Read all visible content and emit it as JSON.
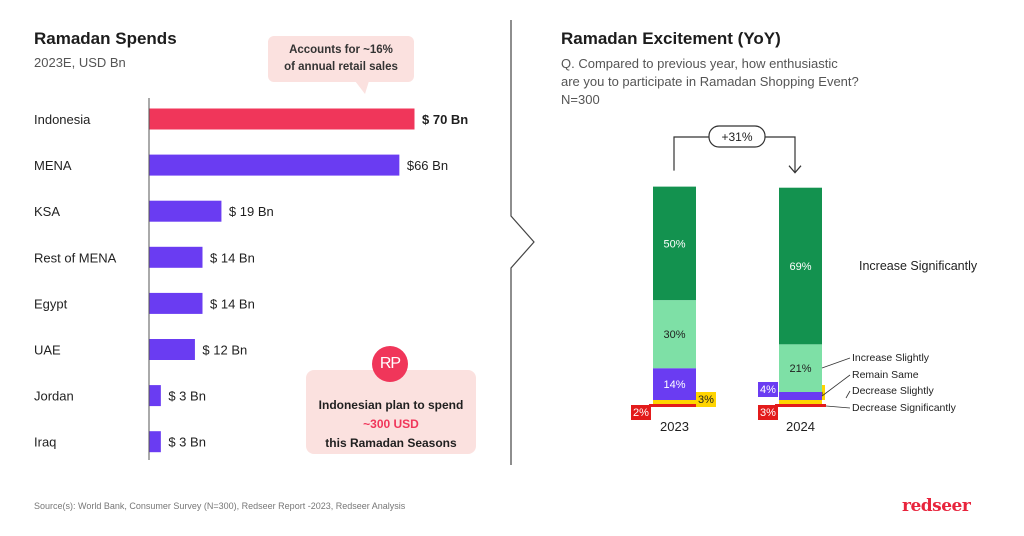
{
  "left": {
    "title": "Ramadan Spends",
    "subtitle": "2023E, USD Bn",
    "callout": {
      "line1": "Accounts for ~16%",
      "line2": "of annual retail sales"
    },
    "note": {
      "line1": "Indonesian plan to spend",
      "line2": "~300 USD",
      "line3": "this Ramadan Seasons",
      "logo": "RP"
    }
  },
  "right": {
    "title": "Ramadan Excitement (YoY)",
    "question_line1": "Q. Compared to previous year, how enthusiastic",
    "question_line2": "are you to participate in Ramadan Shopping Event?",
    "sample": "N=300",
    "growth_label": "+31%"
  },
  "source": "Source(s): World Bank, Consumer Survey (N=300), Redseer Report -2023, Redseer Analysis",
  "brand": "redseer",
  "colors": {
    "highlight": "#f0365a",
    "bar": "#6a3cf2",
    "increase_significantly": "#13924f",
    "increase_slightly": "#7ee0a6",
    "remain_same": "#6a3cf2",
    "decrease_slightly": "#ffd400",
    "decrease_significantly": "#e31b1b"
  },
  "chart_data": [
    {
      "type": "bar",
      "orientation": "horizontal",
      "title": "Ramadan Spends",
      "subtitle": "2023E, USD Bn",
      "categories": [
        "Indonesia",
        "MENA",
        "KSA",
        "Rest of MENA",
        "Egypt",
        "UAE",
        "Jordan",
        "Iraq"
      ],
      "values": [
        70,
        66,
        19,
        14,
        14,
        12,
        3,
        3
      ],
      "value_labels": [
        "$ 70 Bn",
        "$66 Bn",
        "$ 19 Bn",
        "$ 14 Bn",
        "$ 14 Bn",
        "$ 12 Bn",
        "$ 3 Bn",
        "$ 3 Bn"
      ],
      "highlight": "Indonesia"
    },
    {
      "type": "bar",
      "stacked": true,
      "title": "Ramadan Excitement (YoY)",
      "categories": [
        "2023",
        "2024"
      ],
      "series": [
        {
          "name": "Decrease Significantly",
          "values": [
            2,
            3
          ],
          "labels": [
            "2%",
            "3%"
          ]
        },
        {
          "name": "Decrease Slightly",
          "values": [
            3,
            3
          ],
          "labels": [
            "3%",
            "3%"
          ]
        },
        {
          "name": "Remain Same",
          "values": [
            14,
            4
          ],
          "labels": [
            "14%",
            "4%"
          ]
        },
        {
          "name": "Increase Slightly",
          "values": [
            30,
            21
          ],
          "labels": [
            "30%",
            "21%"
          ]
        },
        {
          "name": "Increase Significantly",
          "values": [
            50,
            69
          ],
          "labels": [
            "50%",
            "69%"
          ]
        }
      ]
    }
  ]
}
